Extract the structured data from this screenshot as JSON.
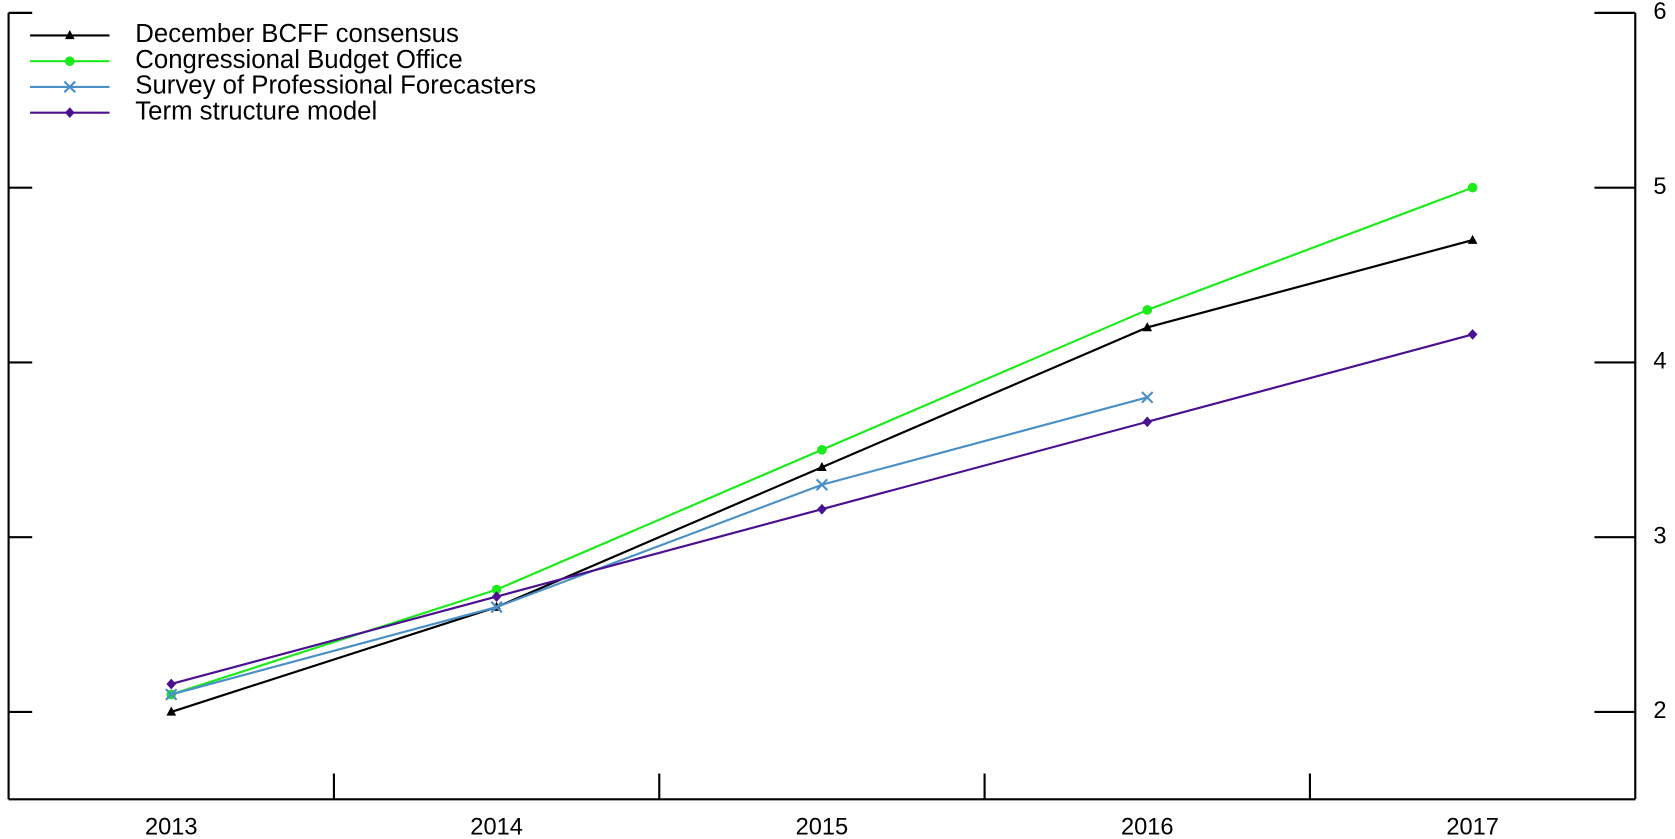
{
  "chart_data": {
    "type": "line",
    "categories": [
      "2013",
      "2014",
      "2015",
      "2016",
      "2017"
    ],
    "series": [
      {
        "name": "December BCFF consensus",
        "color": "#000000",
        "marker": "triangle",
        "values": [
          2.0,
          2.6,
          3.4,
          4.2,
          4.7
        ]
      },
      {
        "name": "Congressional Budget Office",
        "color": "#1bea1b",
        "marker": "circle",
        "values": [
          2.1,
          2.7,
          3.5,
          4.3,
          5.0
        ]
      },
      {
        "name": "Survey of Professional Forecasters",
        "color": "#4a8fc6",
        "marker": "x",
        "values": [
          2.1,
          2.6,
          3.3,
          3.8,
          null
        ]
      },
      {
        "name": "Term structure model",
        "color": "#4b1090",
        "marker": "diamond",
        "values": [
          2.16,
          2.66,
          3.16,
          3.66,
          4.16
        ]
      }
    ],
    "ylim": [
      1.5,
      6
    ],
    "yticks": [
      2,
      3,
      4,
      5,
      6
    ],
    "y_axis_side": "right",
    "legend": "top-left"
  }
}
